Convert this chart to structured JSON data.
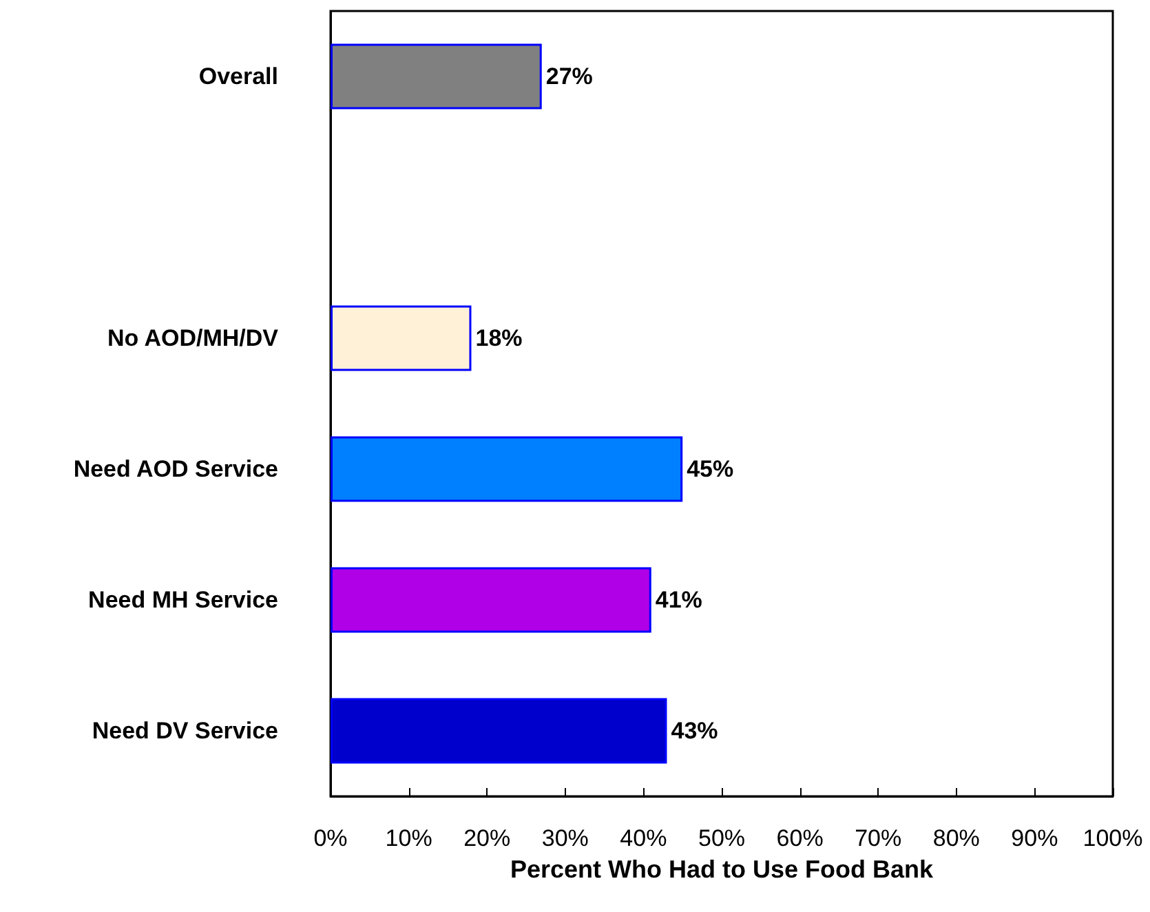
{
  "chart_data": {
    "type": "bar",
    "orientation": "horizontal",
    "xlabel": "Percent Who Had to Use Food Bank",
    "categories": [
      "Overall",
      null,
      "No AOD/MH/DV",
      "Need AOD Service",
      "Need MH Service",
      "Need DV Service"
    ],
    "values": [
      27,
      null,
      18,
      45,
      41,
      43
    ],
    "colors": [
      "#808080",
      null,
      "#fff0d8",
      "#0080ff",
      "#b000e8",
      "#0000cc"
    ],
    "value_labels": [
      "27%",
      null,
      "18%",
      "45%",
      "41%",
      "43%"
    ],
    "xlim": [
      0,
      100
    ],
    "xticks": [
      {
        "value": 0,
        "label": "0%"
      },
      {
        "value": 10,
        "label": "10%"
      },
      {
        "value": 20,
        "label": "20%"
      },
      {
        "value": 30,
        "label": "30%"
      },
      {
        "value": 40,
        "label": "40%"
      },
      {
        "value": 50,
        "label": "50%"
      },
      {
        "value": 60,
        "label": "60%"
      },
      {
        "value": 70,
        "label": "70%"
      },
      {
        "value": 80,
        "label": "80%"
      },
      {
        "value": 90,
        "label": "90%"
      },
      {
        "value": 100,
        "label": "100%"
      }
    ],
    "grid": false
  }
}
